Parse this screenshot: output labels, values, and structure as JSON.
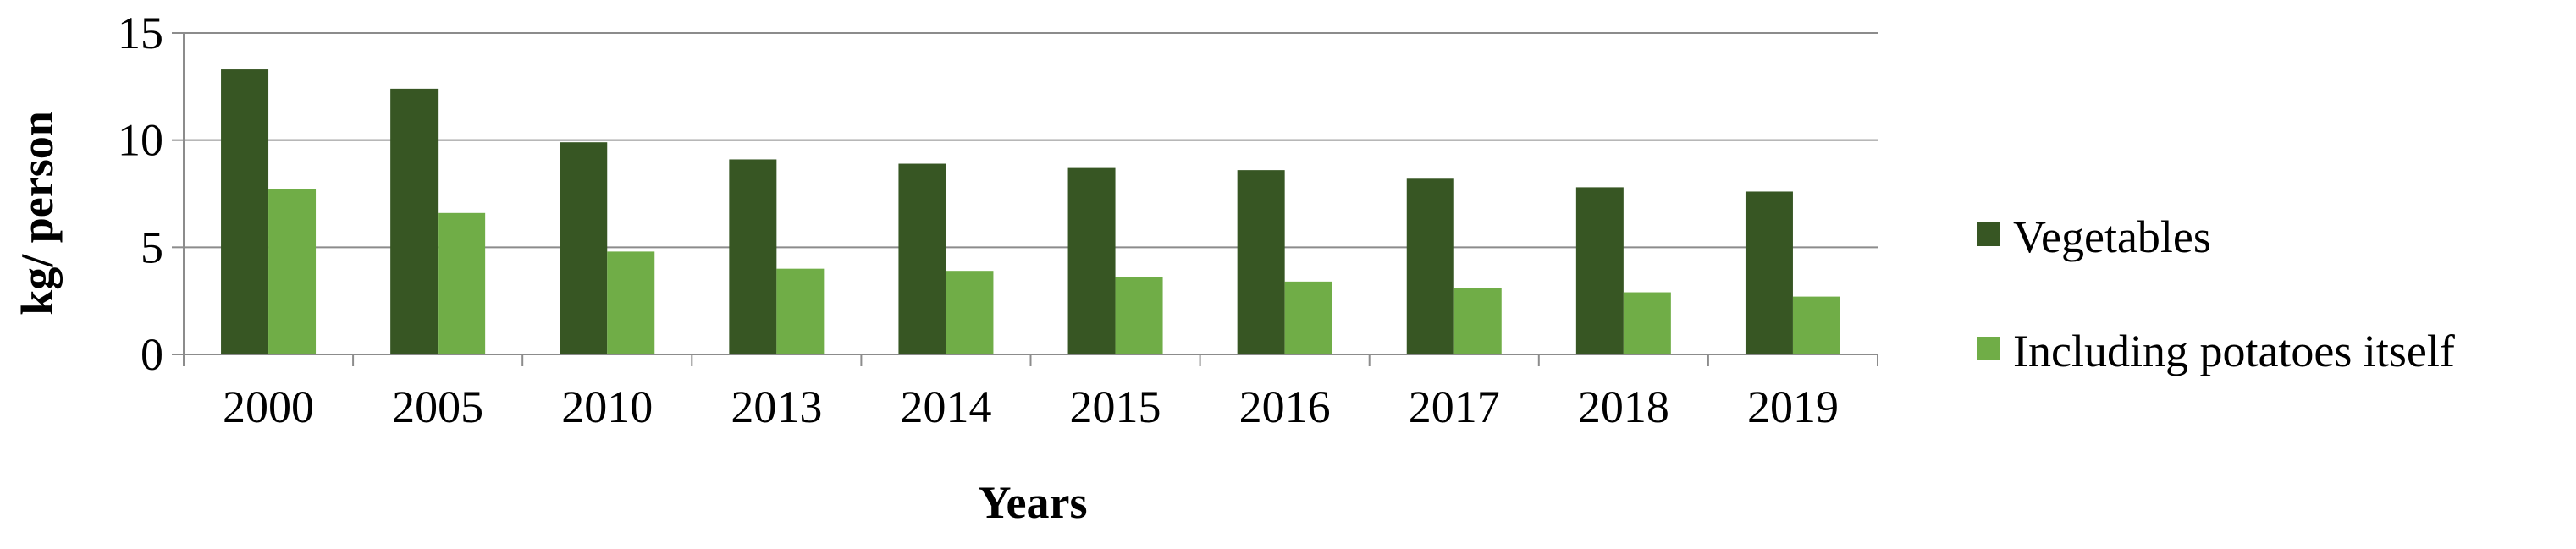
{
  "chart_data": {
    "type": "bar",
    "categories": [
      "2000",
      "2005",
      "2010",
      "2013",
      "2014",
      "2015",
      "2016",
      "2017",
      "2018",
      "2019"
    ],
    "series": [
      {
        "name": "Vegetables",
        "color": "#375623",
        "values": [
          13.3,
          12.4,
          9.9,
          9.1,
          8.9,
          8.7,
          8.6,
          8.2,
          7.8,
          7.6
        ]
      },
      {
        "name": "Including potatoes itself",
        "color": "#70ad47",
        "values": [
          7.7,
          6.6,
          4.8,
          4.0,
          3.9,
          3.6,
          3.4,
          3.1,
          2.9,
          2.7
        ]
      }
    ],
    "xlabel": "Years",
    "ylabel": "kg/ person",
    "ylim": [
      0,
      15
    ],
    "yticks": [
      "0",
      "5",
      "10",
      "15"
    ],
    "grid": true,
    "legend_position": "right"
  }
}
